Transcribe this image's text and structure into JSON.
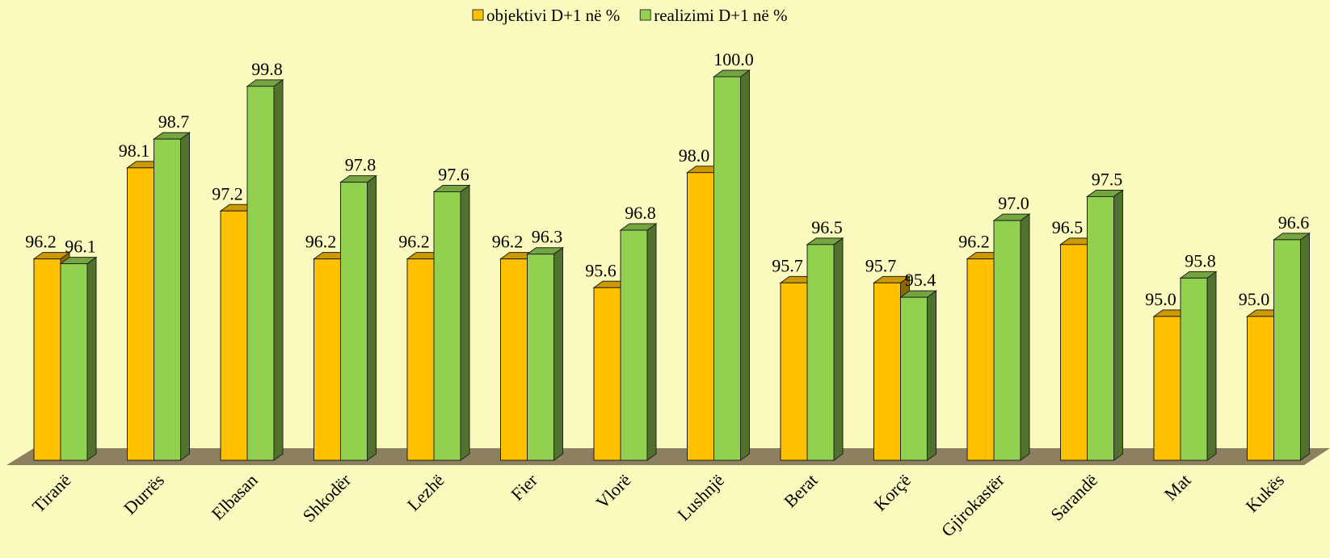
{
  "chart_data": {
    "type": "bar3d",
    "categories": [
      "Tiranë",
      "Durrës",
      "Elbasan",
      "Shkodër",
      "Lezhë",
      "Fier",
      "Vlorë",
      "Lushnjë",
      "Berat",
      "Korçë",
      "Gjirokastër",
      "Sarandë",
      "Mat",
      "Kukës"
    ],
    "series": [
      {
        "name": "objektivi D+1 në %",
        "color": "#ffc000",
        "values": [
          96.2,
          98.1,
          97.2,
          96.2,
          96.2,
          96.2,
          95.6,
          98.0,
          95.7,
          95.7,
          96.2,
          96.5,
          95.0,
          95.0
        ],
        "value_labels": [
          "96.2",
          "98.1",
          "97.2",
          "96.2",
          "96.2",
          "96.2",
          "95.6",
          "98.0",
          "95.7",
          "95.7",
          "96.2",
          "96.5",
          "95.0",
          "95.0"
        ]
      },
      {
        "name": "realizimi D+1 në %",
        "color": "#92d050",
        "values": [
          96.1,
          98.7,
          99.8,
          97.8,
          97.6,
          96.3,
          96.8,
          100.0,
          96.5,
          95.4,
          97.0,
          97.5,
          95.8,
          96.6
        ],
        "value_labels": [
          "96.1",
          "98.7",
          "99.8",
          "97.8",
          "97.6",
          "96.3",
          "96.8",
          "100.0",
          "96.5",
          "95.4",
          "97.0",
          "97.5",
          "95.8",
          "96.6"
        ]
      }
    ],
    "ylim": [
      92,
      100
    ],
    "legend": "top"
  }
}
